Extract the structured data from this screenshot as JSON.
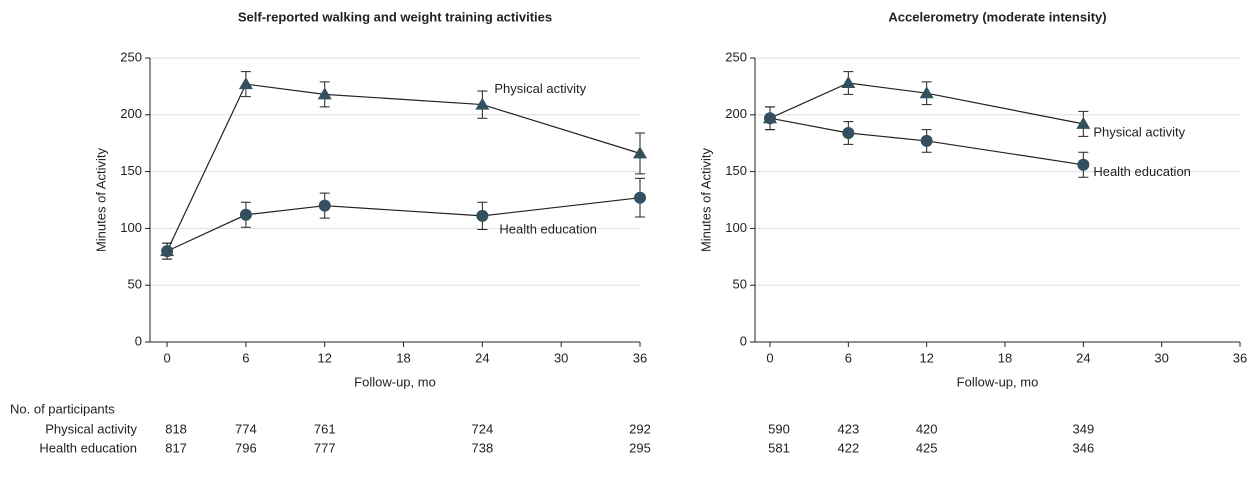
{
  "chart_data": [
    {
      "type": "line",
      "title": "Self-reported walking and weight training activities",
      "xlabel": "Follow-up, mo",
      "ylabel": "Minutes of Activity",
      "x": [
        0,
        6,
        12,
        24,
        36
      ],
      "xlim": [
        -1.3,
        36
      ],
      "xticks": [
        0,
        6,
        12,
        18,
        24,
        30,
        36
      ],
      "ylim": [
        0,
        250
      ],
      "yticks": [
        0,
        50,
        100,
        150,
        200,
        250
      ],
      "grid": true,
      "series": [
        {
          "name": "Physical activity",
          "color": "#34505e",
          "marker": "triangle",
          "values": [
            80,
            227,
            218,
            209,
            166
          ],
          "errors": [
            7,
            11,
            11,
            12,
            18
          ]
        },
        {
          "name": "Health education",
          "color": "#34505e",
          "marker": "circle",
          "values": [
            80,
            112,
            120,
            111,
            127
          ],
          "errors": [
            7,
            11,
            11,
            12,
            17
          ]
        }
      ],
      "participants": {
        "title": "No. of participants",
        "rows": [
          {
            "name": "Physical activity",
            "values": [
              818,
              774,
              761,
              724,
              292
            ]
          },
          {
            "name": "Health education",
            "values": [
              817,
              796,
              777,
              738,
              295
            ]
          }
        ]
      }
    },
    {
      "type": "line",
      "title": "Accelerometry (moderate intensity)",
      "xlabel": "Follow-up, mo",
      "ylabel": "Minutes of Activity",
      "x": [
        0,
        6,
        12,
        24
      ],
      "xlim": [
        -1.15,
        36
      ],
      "xticks": [
        0,
        6,
        12,
        18,
        24,
        30,
        36
      ],
      "ylim": [
        0,
        250
      ],
      "yticks": [
        0,
        50,
        100,
        150,
        200,
        250
      ],
      "grid": true,
      "series": [
        {
          "name": "Physical activity",
          "color": "#34505e",
          "marker": "triangle",
          "values": [
            197,
            228,
            219,
            192
          ],
          "errors": [
            10,
            10,
            10,
            11
          ]
        },
        {
          "name": "Health education",
          "color": "#34505e",
          "marker": "circle",
          "values": [
            197,
            184,
            177,
            156
          ],
          "errors": [
            10,
            10,
            10,
            11
          ]
        }
      ],
      "participants": {
        "rows": [
          {
            "values": [
              590,
              423,
              420,
              349
            ]
          },
          {
            "values": [
              581,
              422,
              425,
              346
            ]
          }
        ]
      }
    }
  ]
}
